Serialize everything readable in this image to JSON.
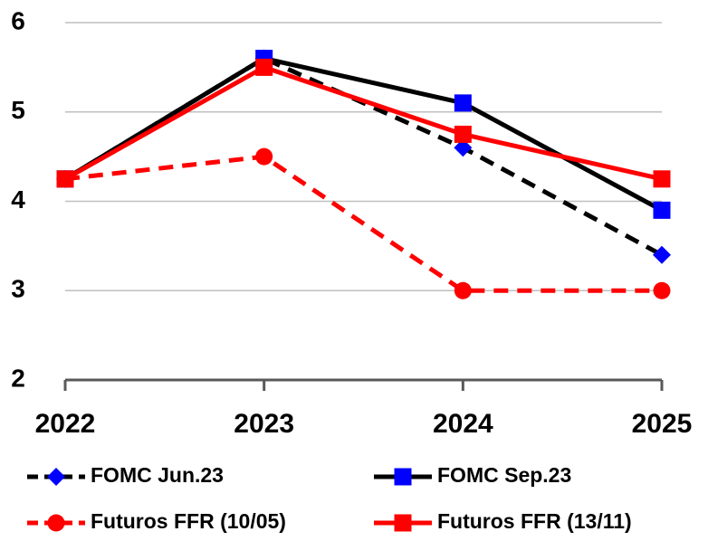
{
  "chart_data": {
    "type": "line",
    "categories": [
      "2022",
      "2023",
      "2024",
      "2025"
    ],
    "series": [
      {
        "name": "FOMC Jun.23",
        "color": "#000000",
        "marker_color": "#0000ff",
        "marker": "diamond",
        "dash": true,
        "values": [
          4.25,
          5.6,
          4.6,
          3.4
        ]
      },
      {
        "name": "FOMC Sep.23",
        "color": "#000000",
        "marker_color": "#0000ff",
        "marker": "square",
        "dash": false,
        "values": [
          4.25,
          5.6,
          5.1,
          3.9
        ]
      },
      {
        "name": "Futuros FFR (10/05)",
        "color": "#ff0000",
        "marker_color": "#ff0000",
        "marker": "circle",
        "dash": true,
        "values": [
          4.25,
          4.5,
          3.0,
          3.0
        ]
      },
      {
        "name": "Futuros FFR (13/11)",
        "color": "#ff0000",
        "marker_color": "#ff0000",
        "marker": "square",
        "dash": false,
        "values": [
          4.25,
          5.5,
          4.75,
          4.25
        ]
      }
    ],
    "ylim": [
      2,
      6
    ],
    "yticks": [
      2,
      3,
      4,
      5,
      6
    ],
    "grid": true
  }
}
